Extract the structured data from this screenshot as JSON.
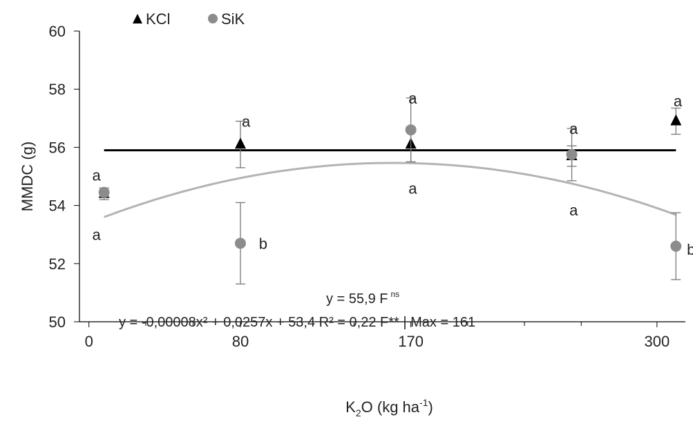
{
  "chart_data": {
    "type": "scatter",
    "title": "",
    "xlabel": {
      "base": "K",
      "sub": "2",
      "mid": "O (kg ha",
      "sup": "-1",
      "end": ")"
    },
    "ylabel": "MMDC (g)",
    "xlim": [
      -5,
      315
    ],
    "ylim": [
      50,
      60
    ],
    "xticks": [
      0,
      80,
      170,
      300
    ],
    "xtick_labels": [
      "0",
      "80",
      "170",
      "300"
    ],
    "minor_xticks": [
      30,
      55,
      110,
      140,
      200,
      230,
      260
    ],
    "yticks": [
      50,
      52,
      54,
      56,
      58,
      60
    ],
    "ytick_labels": [
      "50",
      "52",
      "54",
      "56",
      "58",
      "60"
    ],
    "grid": false,
    "legend": {
      "position": "top-left",
      "entries": [
        "KCl",
        "SiK"
      ]
    },
    "series": [
      {
        "name": "KCl",
        "marker": "triangle",
        "color": "#000000",
        "points": [
          {
            "x": 8,
            "y": 54.4,
            "err": 0.2
          },
          {
            "x": 80,
            "y": 56.1,
            "err": 0.8
          },
          {
            "x": 170,
            "y": 56.1,
            "err": 0.6
          },
          {
            "x": 255,
            "y": 55.7,
            "err": 0.35
          },
          {
            "x": 310,
            "y": 56.9,
            "err": 0.45
          }
        ],
        "fit": {
          "kind": "constant",
          "value": 55.9,
          "x_range": [
            8,
            310
          ]
        }
      },
      {
        "name": "SiK",
        "marker": "circle",
        "color": "#8c8c8c",
        "points": [
          {
            "x": 8,
            "y": 54.45,
            "err": 0.15
          },
          {
            "x": 80,
            "y": 52.7,
            "err": 1.4
          },
          {
            "x": 170,
            "y": 56.6,
            "err": 1.1
          },
          {
            "x": 255,
            "y": 55.75,
            "err": 0.9
          },
          {
            "x": 310,
            "y": 52.6,
            "err": 1.15
          }
        ],
        "fit": {
          "kind": "quadratic",
          "a": -8e-05,
          "b": 0.0257,
          "c": 53.4,
          "x_range": [
            8,
            310
          ]
        }
      }
    ],
    "annotations": [
      {
        "text": "a",
        "x": 4,
        "y": 55.05
      },
      {
        "text": "a",
        "x": 4,
        "y": 53.0
      },
      {
        "text": "a",
        "x": 83,
        "y": 56.9
      },
      {
        "text": "b",
        "x": 92,
        "y": 52.7
      },
      {
        "text": "a",
        "x": 171,
        "y": 57.7
      },
      {
        "text": "a",
        "x": 171,
        "y": 54.6
      },
      {
        "text": "a",
        "x": 256,
        "y": 56.65
      },
      {
        "text": "a",
        "x": 256,
        "y": 53.85
      },
      {
        "text": "a",
        "x": 311,
        "y": 57.6
      },
      {
        "text": "b",
        "x": 318,
        "y": 52.5
      }
    ],
    "equations": {
      "line1": "y = 55,9 F",
      "line1_sup": "ns",
      "line2": "y = -0,00008x² + 0,0257x + 53,4 R² = 0,22 F** | Max = 161"
    }
  }
}
